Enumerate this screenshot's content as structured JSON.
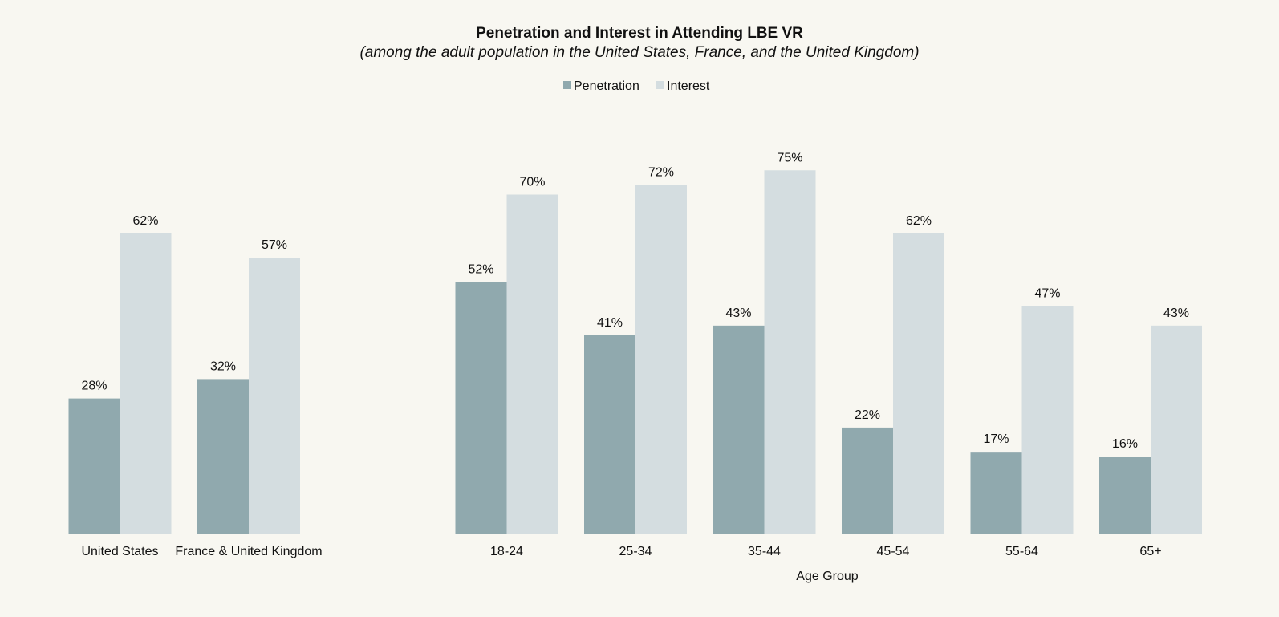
{
  "chart_data": {
    "type": "bar",
    "title": "Penetration and Interest in Attending LBE VR",
    "subtitle": "(among the adult population in the United States, France, and the United Kingdom)",
    "legend": {
      "placement": "top-center",
      "entries": [
        "Penetration",
        "Interest"
      ]
    },
    "colors": {
      "Penetration": "#90a9ae",
      "Interest": "#d4dde0",
      "background": "#f8f7f1"
    },
    "ylim": [
      0,
      80
    ],
    "grid": false,
    "panels": [
      {
        "xlabel": "",
        "categories": [
          "United States",
          "France & United Kingdom"
        ],
        "series": [
          {
            "name": "Penetration",
            "values": [
              28,
              32
            ],
            "labels": [
              "28%",
              "32%"
            ]
          },
          {
            "name": "Interest",
            "values": [
              62,
              57
            ],
            "labels": [
              "62%",
              "57%"
            ]
          }
        ]
      },
      {
        "xlabel": "Age Group",
        "categories": [
          "18-24",
          "25-34",
          "35-44",
          "45-54",
          "55-64",
          "65+"
        ],
        "series": [
          {
            "name": "Penetration",
            "values": [
              52,
              41,
              43,
              22,
              17,
              16
            ],
            "labels": [
              "52%",
              "41%",
              "43%",
              "22%",
              "17%",
              "16%"
            ]
          },
          {
            "name": "Interest",
            "values": [
              70,
              72,
              75,
              62,
              47,
              43
            ],
            "labels": [
              "70%",
              "72%",
              "75%",
              "62%",
              "47%",
              "43%"
            ]
          }
        ]
      }
    ]
  }
}
